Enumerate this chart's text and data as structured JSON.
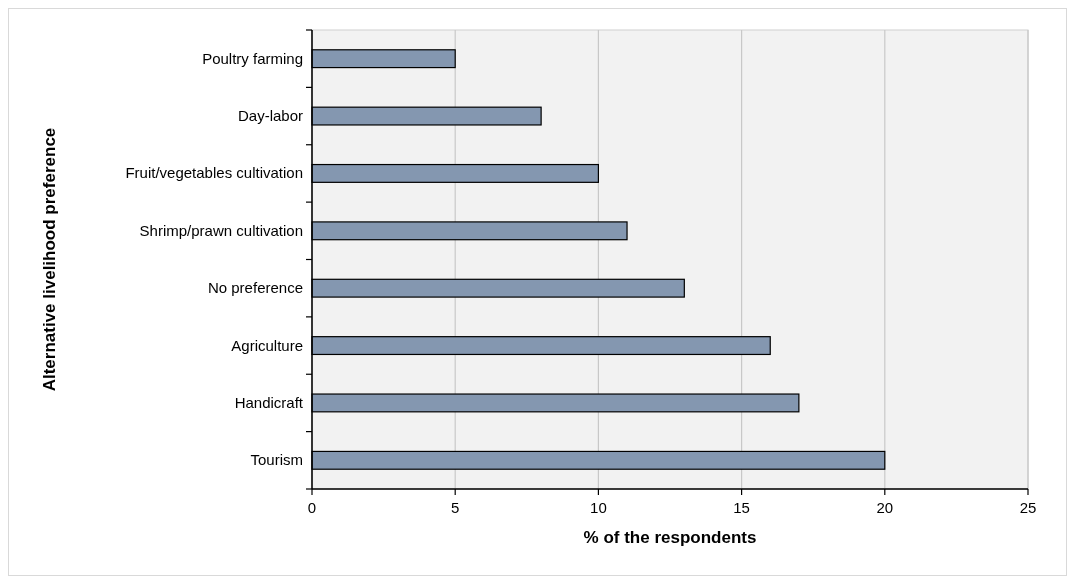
{
  "chart_data": {
    "type": "bar",
    "orientation": "horizontal",
    "xlabel": "% of the respondents",
    "ylabel": "Alternative livelihood preference",
    "categories": [
      "Poultry farming",
      "Day-labor",
      "Fruit/vegetables cultivation",
      "Shrimp/prawn cultivation",
      "No preference",
      "Agriculture",
      "Handicraft",
      "Tourism"
    ],
    "values": [
      5,
      8,
      10,
      11,
      13,
      16,
      17,
      20
    ],
    "color": "#8497b0",
    "xlim": [
      0,
      25
    ],
    "xticks": [
      0,
      5,
      10,
      15,
      20,
      25
    ],
    "grid": "x"
  }
}
